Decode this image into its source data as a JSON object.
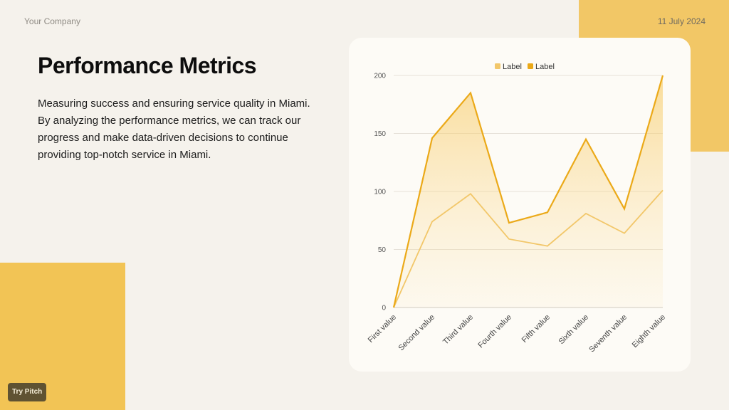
{
  "header": {
    "company": "Your Company",
    "date": "11 July 2024"
  },
  "main": {
    "title": "Performance Metrics",
    "description": "Measuring success and ensuring service quality in Miami. By analyzing the performance metrics, we can track our progress and make data-driven decisions to continue providing top-notch service in Miami."
  },
  "footer": {
    "badge_label": "Try Pitch"
  },
  "chart_data": {
    "type": "area",
    "categories": [
      "First value",
      "Second value",
      "Third value",
      "Fourth value",
      "Fifth value",
      "Sixth value",
      "Seventh value",
      "Eighth value"
    ],
    "series": [
      {
        "name": "Label",
        "values": [
          0,
          74,
          98,
          59,
          53,
          81,
          64,
          101
        ],
        "color": "#f2c76a"
      },
      {
        "name": "Label",
        "values": [
          0,
          146,
          185,
          73,
          82,
          145,
          85,
          200
        ],
        "color": "#eba918"
      }
    ],
    "ylim": [
      0,
      200
    ],
    "yticks": [
      0,
      50,
      100,
      150,
      200
    ],
    "grid": true,
    "legend": "top-center"
  }
}
